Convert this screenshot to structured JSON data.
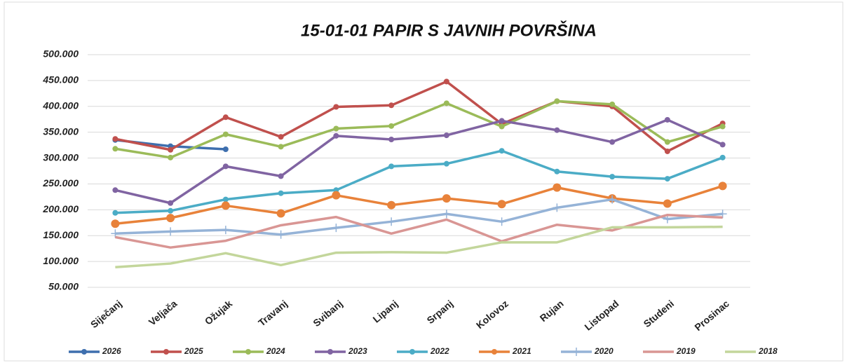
{
  "chart_data": {
    "type": "line",
    "title": "15-01-01 PAPIR S JAVNIH POVRŠINA",
    "categories": [
      "Siječanj",
      "Veljača",
      "Ožujak",
      "Travanj",
      "Svibanj",
      "Lipanj",
      "Srpanj",
      "Kolovoz",
      "Rujan",
      "Listopad",
      "Studeni",
      "Prosinac"
    ],
    "ylim": [
      50000,
      500000
    ],
    "yticks": [
      {
        "value": 50000,
        "label": "50.000"
      },
      {
        "value": 100000,
        "label": "100.000"
      },
      {
        "value": 150000,
        "label": "150.000"
      },
      {
        "value": 200000,
        "label": "200.000"
      },
      {
        "value": 250000,
        "label": "250.000"
      },
      {
        "value": 300000,
        "label": "300.000"
      },
      {
        "value": 350000,
        "label": "350.000"
      },
      {
        "value": 400000,
        "label": "400.000"
      },
      {
        "value": 450000,
        "label": "450.000"
      },
      {
        "value": 500000,
        "label": "500.000"
      }
    ],
    "grid": true,
    "legend": "bottom",
    "series": [
      {
        "name": "2026",
        "color": "#3e6fae",
        "marker": "circle",
        "values": [
          335000,
          323000,
          317000,
          null,
          null,
          null,
          null,
          null,
          null,
          null,
          null,
          null
        ]
      },
      {
        "name": "2025",
        "color": "#c0504d",
        "marker": "circle",
        "values": [
          337000,
          316000,
          379000,
          341000,
          399000,
          402000,
          448000,
          366000,
          410000,
          400000,
          313000,
          367000
        ]
      },
      {
        "name": "2024",
        "color": "#9bbb59",
        "marker": "circle",
        "values": [
          318000,
          301000,
          346000,
          322000,
          357000,
          362000,
          406000,
          361000,
          410000,
          404000,
          331000,
          361000
        ]
      },
      {
        "name": "2023",
        "color": "#8064a2",
        "marker": "circle",
        "values": [
          238000,
          213000,
          284000,
          265000,
          343000,
          336000,
          344000,
          372000,
          354000,
          331000,
          374000,
          326000
        ]
      },
      {
        "name": "2022",
        "color": "#4bacc6",
        "marker": "circle",
        "values": [
          194000,
          198000,
          220000,
          232000,
          238000,
          284000,
          289000,
          314000,
          274000,
          264000,
          260000,
          301000
        ]
      },
      {
        "name": "2021",
        "color": "#e8823a",
        "marker": "circle",
        "values": [
          173000,
          184000,
          208000,
          193000,
          228000,
          209000,
          222000,
          211000,
          243000,
          222000,
          212000,
          246000
        ]
      },
      {
        "name": "2020",
        "color": "#95b3d7",
        "marker": "plus",
        "values": [
          154000,
          158000,
          161000,
          152000,
          165000,
          177000,
          192000,
          177000,
          204000,
          220000,
          182000,
          192000
        ]
      },
      {
        "name": "2019",
        "color": "#d99694",
        "marker": "none",
        "values": [
          147000,
          127000,
          140000,
          170000,
          186000,
          154000,
          181000,
          139000,
          171000,
          160000,
          190000,
          185000
        ]
      },
      {
        "name": "2018",
        "color": "#c3d69b",
        "marker": "none",
        "values": [
          89000,
          96000,
          116000,
          93000,
          117000,
          118000,
          117000,
          137000,
          137000,
          166000,
          166000,
          167000
        ]
      }
    ]
  }
}
